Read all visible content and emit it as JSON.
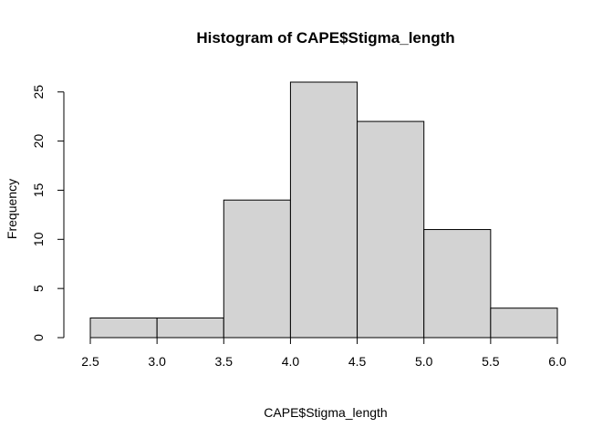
{
  "chart_data": {
    "type": "bar",
    "title": "Histogram of CAPE$Stigma_length",
    "xlabel": "CAPE$Stigma_length",
    "ylabel": "Frequency",
    "bins": [
      {
        "from": 2.5,
        "to": 3.0,
        "count": 2
      },
      {
        "from": 3.0,
        "to": 3.5,
        "count": 2
      },
      {
        "from": 3.5,
        "to": 4.0,
        "count": 14
      },
      {
        "from": 4.0,
        "to": 4.5,
        "count": 26
      },
      {
        "from": 4.5,
        "to": 5.0,
        "count": 22
      },
      {
        "from": 5.0,
        "to": 5.5,
        "count": 11
      },
      {
        "from": 5.5,
        "to": 6.0,
        "count": 3
      }
    ],
    "xlim": [
      2.5,
      6.0
    ],
    "ylim": [
      0,
      26
    ],
    "x_ticks": [
      "2.5",
      "3.0",
      "3.5",
      "4.0",
      "4.5",
      "5.0",
      "5.5",
      "6.0"
    ],
    "y_ticks": [
      "0",
      "5",
      "10",
      "15",
      "20",
      "25"
    ],
    "grid": false,
    "bar_fill": "#d3d3d3",
    "bar_stroke": "#000000"
  }
}
